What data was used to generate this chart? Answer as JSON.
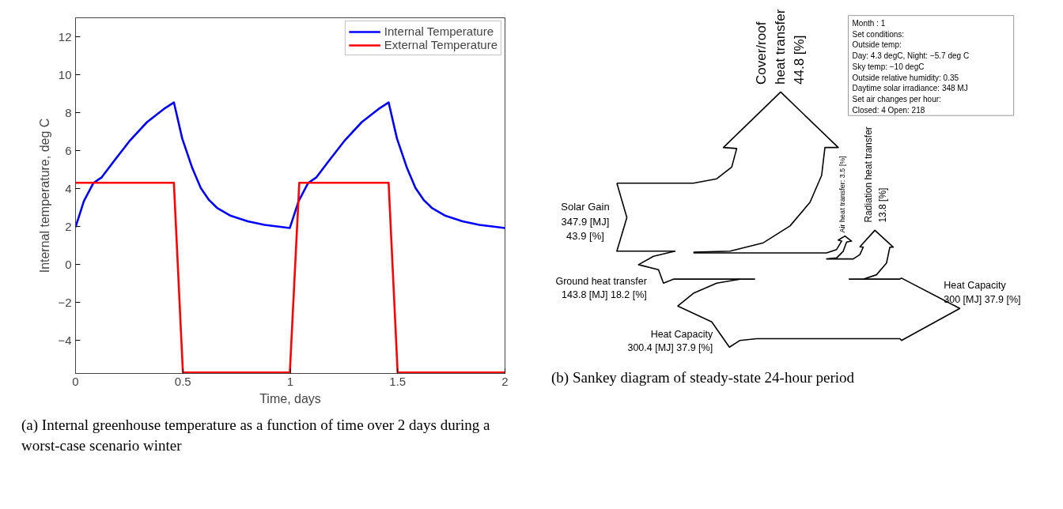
{
  "chart_data": [
    {
      "type": "line",
      "xlabel": "Time, days",
      "ylabel": "Internal temperature, deg C",
      "xlim": [
        0,
        2
      ],
      "ylim": [
        -5.75,
        13
      ],
      "xticks": [
        0,
        0.5,
        1,
        1.5,
        2
      ],
      "yticks": [
        -4,
        -2,
        0,
        2,
        4,
        6,
        8,
        10,
        12
      ],
      "grid": false,
      "legend": "top right",
      "marker": "none",
      "line_style": "solid",
      "annotations": [
        "(a) Internal greenhouse temperature as a function of time over 2 days during a worst-case scenario winter"
      ],
      "series": [
        {
          "name": "Internal Temperature",
          "color": "#0000ff",
          "x": [
            0,
            0.039,
            0.083,
            0.122,
            0.177,
            0.255,
            0.333,
            0.411,
            0.458,
            0.497,
            0.544,
            0.583,
            0.622,
            0.661,
            0.723,
            0.802,
            0.88,
            0.998,
            1.039,
            1.083,
            1.122,
            1.177,
            1.255,
            1.333,
            1.411,
            1.458,
            1.497,
            1.544,
            1.583,
            1.622,
            1.661,
            1.723,
            1.802,
            1.88,
            2
          ],
          "values": [
            1.96,
            3.34,
            4.29,
            4.59,
            5.42,
            6.55,
            7.5,
            8.19,
            8.54,
            6.63,
            5.07,
            4.03,
            3.39,
            2.96,
            2.56,
            2.27,
            2.08,
            1.92,
            3.34,
            4.29,
            4.59,
            5.42,
            6.55,
            7.5,
            8.19,
            8.54,
            6.63,
            5.07,
            4.03,
            3.39,
            2.96,
            2.56,
            2.27,
            2.08,
            1.92
          ]
        },
        {
          "name": "External Temperature",
          "color": "#ff0000",
          "x": [
            0,
            0.458,
            0.5,
            0.998,
            1.042,
            1.458,
            1.5,
            2
          ],
          "values": [
            4.3,
            4.3,
            -5.7,
            -5.7,
            4.3,
            4.3,
            -5.7,
            -5.7
          ]
        }
      ]
    },
    {
      "type": "other",
      "annotations": [
        "(b) Sankey diagram of steady-state 24-hour period",
        "Solar Gain\n347.9 [MJ]\n43.9 [%]",
        "Ground heat transfer\n143.8 [MJ] 18.2 [%]",
        "Heat Capacity\n300.4 [MJ] 37.9 [%]",
        "Heat Capacity\n300 [MJ] 37.9 [%]",
        "Cover/roof\nheat transfer\n44.8 [%]",
        "Air heat transfer: 3.5 [%]",
        "Radiation heat transfer\n13.8 [%]",
        "Month : 1\nSet conditions:\nOutside temp:\nDay: 4.3 degC, Night: −5.7 deg C\nSky temp: −10 degC\nOutside relative humidity: 0.35\nDaytime solar irradiance: 348 MJ\nSet air changes per hour:\nClosed: 4   Open: 218"
      ]
    }
  ]
}
